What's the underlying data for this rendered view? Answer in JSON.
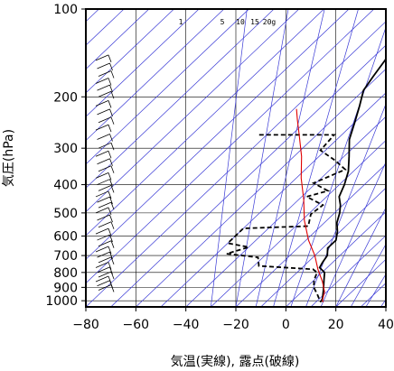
{
  "chart_data": {
    "type": "skew-t",
    "xlabel": "気温(実線), 露点(破線)",
    "ylabel": "気圧(hPa)",
    "x_ticks": [
      -80,
      -60,
      -40,
      -20,
      0,
      20,
      40
    ],
    "x_tick_labels": [
      "−80",
      "−60",
      "−40",
      "−20",
      "0",
      "20",
      "40"
    ],
    "y_ticks": [
      100,
      200,
      300,
      400,
      500,
      600,
      700,
      800,
      900,
      1000
    ],
    "y_tick_labels": [
      "100",
      "200",
      "300",
      "400",
      "500",
      "600",
      "700",
      "800",
      "900",
      "1000"
    ],
    "xlim": [
      -80,
      40
    ],
    "ylim_hpa": [
      100,
      1050
    ],
    "y_scale": "log",
    "grid": true,
    "mixing_ratio_labels": [
      "1",
      "5",
      "10",
      "15",
      "20g"
    ],
    "series": [
      {
        "name": "",
        "style": "solid",
        "color": "#000000",
        "points": [
          [
            -69,
            100
          ],
          [
            -70.5,
            110
          ],
          [
            -69.5,
            122
          ],
          [
            -66,
            138
          ],
          [
            -64,
            150
          ],
          [
            -62,
            170
          ],
          [
            -60,
            190
          ],
          [
            -55,
            215
          ],
          [
            -50,
            245
          ],
          [
            -45,
            280
          ],
          [
            -38,
            320
          ],
          [
            -32,
            360
          ],
          [
            -28,
            400
          ],
          [
            -25,
            440
          ],
          [
            -21,
            470
          ],
          [
            -18,
            500
          ],
          [
            -15,
            540
          ],
          [
            -11,
            580
          ],
          [
            -8,
            620
          ],
          [
            -8,
            660
          ],
          [
            -5,
            700
          ],
          [
            -4,
            740
          ],
          [
            -3,
            770
          ],
          [
            1,
            800
          ],
          [
            4,
            850
          ],
          [
            8,
            920
          ],
          [
            11,
            980
          ],
          [
            12,
            1010
          ]
        ]
      },
      {
        "name": "",
        "style": "dashed",
        "color": "#000000",
        "points": [
          [
            -83,
            270
          ],
          [
            -59,
            270
          ],
          [
            -53,
            270
          ],
          [
            -52,
            305
          ],
          [
            -42,
            330
          ],
          [
            -34,
            355
          ],
          [
            -41,
            395
          ],
          [
            -32,
            420
          ],
          [
            -38,
            440
          ],
          [
            -28,
            470
          ],
          [
            -29,
            505
          ],
          [
            -25,
            555
          ],
          [
            -50,
            565
          ],
          [
            -50,
            635
          ],
          [
            -40,
            655
          ],
          [
            -46,
            690
          ],
          [
            -32,
            710
          ],
          [
            -28,
            760
          ],
          [
            -5,
            780
          ],
          [
            -2,
            800
          ],
          [
            0,
            850
          ],
          [
            3,
            900
          ],
          [
            8,
            960
          ],
          [
            11,
            1000
          ],
          [
            12,
            1010
          ]
        ]
      },
      {
        "name": "",
        "style": "solid",
        "color": "#e00000",
        "points": [
          [
            -79,
            220
          ],
          [
            -74,
            240
          ],
          [
            -67,
            270
          ],
          [
            -57,
            320
          ],
          [
            -48,
            380
          ],
          [
            -38,
            450
          ],
          [
            -29,
            530
          ],
          [
            -19,
            620
          ],
          [
            -10,
            700
          ],
          [
            -3,
            780
          ],
          [
            4,
            860
          ],
          [
            9,
            930
          ],
          [
            12,
            1000
          ],
          [
            13,
            1010
          ]
        ]
      }
    ],
    "wind_barbs_hpa": [
      150,
      160,
      170,
      180,
      190,
      200,
      215,
      230,
      245,
      260,
      280,
      300,
      320,
      340,
      360,
      380,
      400,
      420,
      440,
      460,
      480,
      500,
      530,
      560,
      590,
      620,
      650,
      680,
      710,
      740,
      770,
      800,
      830,
      860,
      890,
      920
    ]
  },
  "colors": {
    "grid": "#000000",
    "skew_lines": "#3b3bd6",
    "temperature": "#000000",
    "dewpoint": "#000000",
    "parcel": "#e00000"
  }
}
